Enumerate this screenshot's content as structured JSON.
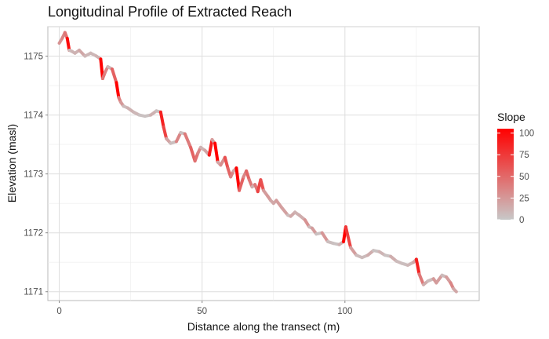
{
  "chart_data": {
    "type": "line",
    "title": "Longitudinal Profile of Extracted Reach",
    "xlabel": "Distance along the transect (m)",
    "ylabel": "Elevation (masl)",
    "xlim": [
      -4,
      147
    ],
    "ylim": [
      1170.85,
      1175.5
    ],
    "x_ticks": [
      0,
      50,
      100
    ],
    "y_ticks": [
      1171,
      1172,
      1173,
      1174,
      1175
    ],
    "grid": true,
    "legend": {
      "title": "Slope",
      "placement": "right",
      "type": "colorbar",
      "range": [
        0,
        105
      ],
      "ticks": [
        0,
        25,
        50,
        75,
        100
      ],
      "color_low": "#c8c8c8",
      "color_high": "#ff0000"
    },
    "series": [
      {
        "x": [
          0,
          1,
          2,
          2.8,
          3.5,
          4.5,
          5.5,
          7,
          9,
          11,
          13,
          14.5,
          15.2,
          16,
          17,
          18.5,
          20,
          20.8,
          21.5,
          22.5,
          24,
          26,
          28,
          30,
          32,
          34,
          35.5,
          36.5,
          37.5,
          39,
          41,
          42.5,
          44,
          46,
          47.5,
          48.5,
          49.5,
          51,
          52.5,
          53.5,
          54.5,
          55.5,
          56.5,
          58,
          59,
          60,
          61,
          62,
          63,
          64.5,
          65.5,
          66.5,
          67.5,
          68.5,
          69.5,
          70.5,
          71.5,
          73,
          74,
          75,
          76,
          78,
          80,
          81,
          82.5,
          84,
          86,
          87.5,
          88.5,
          90,
          92,
          94,
          96,
          98,
          99.5,
          100.3,
          101,
          102,
          104,
          106,
          108,
          110,
          112,
          114,
          116,
          118,
          120,
          122,
          124,
          125,
          126,
          127.5,
          129,
          131,
          132,
          134,
          135.5,
          137,
          138,
          139
        ],
        "y": [
          1175.22,
          1175.3,
          1175.4,
          1175.3,
          1175.1,
          1175.08,
          1175.05,
          1175.1,
          1175.0,
          1175.05,
          1175.0,
          1174.95,
          1174.62,
          1174.72,
          1174.82,
          1174.78,
          1174.55,
          1174.3,
          1174.22,
          1174.15,
          1174.12,
          1174.05,
          1174.0,
          1173.98,
          1174.0,
          1174.07,
          1174.05,
          1173.8,
          1173.6,
          1173.52,
          1173.55,
          1173.7,
          1173.68,
          1173.45,
          1173.22,
          1173.35,
          1173.45,
          1173.4,
          1173.32,
          1173.58,
          1173.52,
          1173.2,
          1173.15,
          1173.28,
          1173.1,
          1172.95,
          1173.05,
          1173.1,
          1172.72,
          1172.95,
          1173.05,
          1172.9,
          1172.78,
          1172.82,
          1172.7,
          1172.9,
          1172.72,
          1172.62,
          1172.55,
          1172.5,
          1172.55,
          1172.42,
          1172.3,
          1172.28,
          1172.35,
          1172.3,
          1172.22,
          1172.1,
          1172.08,
          1171.98,
          1172.0,
          1171.85,
          1171.82,
          1171.8,
          1171.85,
          1172.1,
          1171.95,
          1171.75,
          1171.62,
          1171.58,
          1171.62,
          1171.7,
          1171.68,
          1171.62,
          1171.6,
          1171.52,
          1171.48,
          1171.45,
          1171.5,
          1171.55,
          1171.3,
          1171.12,
          1171.18,
          1171.22,
          1171.15,
          1171.28,
          1171.25,
          1171.15,
          1171.05,
          1171.0
        ]
      }
    ]
  }
}
